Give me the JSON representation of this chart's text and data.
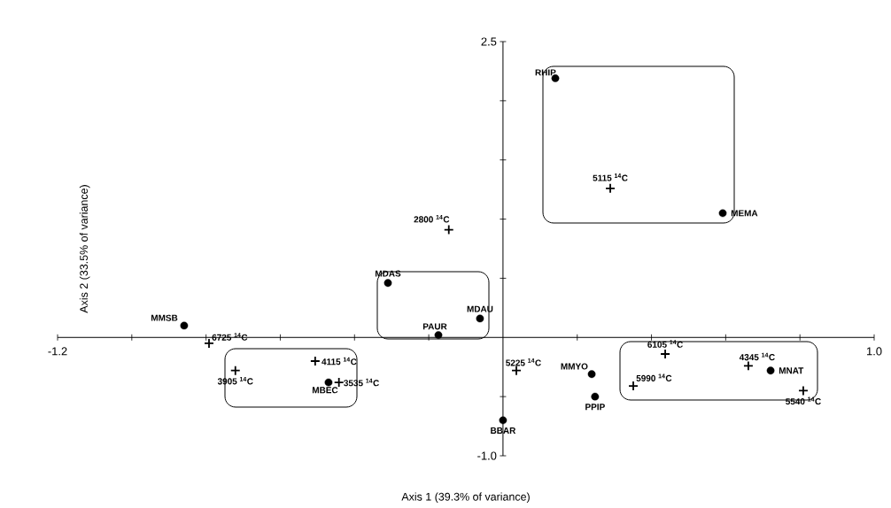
{
  "chart_data": {
    "type": "scatter",
    "xlabel": "Axis 1 (39.3% of variance)",
    "ylabel": "Axis 2 (33.5% of variance)",
    "xlim": [
      -1.2,
      1.0
    ],
    "ylim": [
      -1.0,
      2.5
    ],
    "xticks": [
      {
        "value": -1.2,
        "label": "-1.2"
      },
      {
        "value": -1.0,
        "label": null
      },
      {
        "value": -0.8,
        "label": null
      },
      {
        "value": -0.6,
        "label": null
      },
      {
        "value": -0.4,
        "label": null
      },
      {
        "value": -0.2,
        "label": null
      },
      {
        "value": 0.2,
        "label": null
      },
      {
        "value": 0.4,
        "label": null
      },
      {
        "value": 0.6,
        "label": null
      },
      {
        "value": 0.8,
        "label": null
      },
      {
        "value": 1.0,
        "label": "1.0"
      }
    ],
    "yticks": [
      {
        "value": -1.0,
        "label": "-1.0"
      },
      {
        "value": -0.5,
        "label": null
      },
      {
        "value": 0.5,
        "label": null
      },
      {
        "value": 1.0,
        "label": null
      },
      {
        "value": 1.5,
        "label": null
      },
      {
        "value": 2.0,
        "label": null
      },
      {
        "value": 2.5,
        "label": "2.5"
      }
    ],
    "series": [
      {
        "color": "#000000",
        "marker": "circle",
        "x": [
          0.141,
          0.592,
          -0.31,
          -0.062,
          -0.174,
          -0.859,
          -0.47,
          0.0,
          0.239,
          0.248,
          0.721
        ],
        "values": [
          2.19,
          1.05,
          0.46,
          0.16,
          0.02,
          0.1,
          -0.38,
          -0.7,
          -0.31,
          -0.5,
          -0.28
        ]
      },
      {
        "color": "#000000",
        "marker": "cross",
        "x": [
          0.289,
          -0.146,
          -0.792,
          -0.506,
          -0.721,
          -0.442,
          0.036,
          0.437,
          0.661,
          0.351,
          0.809
        ],
        "values": [
          1.26,
          0.91,
          -0.05,
          -0.2,
          -0.28,
          -0.38,
          -0.28,
          -0.14,
          -0.24,
          -0.41,
          -0.45
        ]
      }
    ],
    "annotations": [
      {
        "text": "RHIP",
        "x": 0.141,
        "y": 2.19
      },
      {
        "text": "MEMA",
        "x": 0.592,
        "y": 1.05
      },
      {
        "text": "MDAS",
        "x": -0.31,
        "y": 0.46
      },
      {
        "text": "MDAU",
        "x": -0.062,
        "y": 0.16
      },
      {
        "text": "PAUR",
        "x": -0.174,
        "y": 0.02
      },
      {
        "text": "MMSB",
        "x": -0.859,
        "y": 0.1
      },
      {
        "text": "MBEC",
        "x": -0.47,
        "y": -0.38
      },
      {
        "text": "BBAR",
        "x": 0.0,
        "y": -0.7
      },
      {
        "text": "MMYO",
        "x": 0.239,
        "y": -0.31
      },
      {
        "text": "PPIP",
        "x": 0.248,
        "y": -0.5
      },
      {
        "text": "MNAT",
        "x": 0.721,
        "y": -0.28
      },
      {
        "text": "5115 $^{14}$C",
        "x": 0.289,
        "y": 1.26
      },
      {
        "text": "2800 $^{14}$C",
        "x": -0.146,
        "y": 0.91
      },
      {
        "text": "6725 $^{14}$C",
        "x": -0.792,
        "y": -0.05
      },
      {
        "text": "4115 $^{14}$C",
        "x": -0.506,
        "y": -0.2
      },
      {
        "text": "3905 $^{14}$C",
        "x": -0.721,
        "y": -0.28
      },
      {
        "text": "3535 $^{14}$C",
        "x": -0.442,
        "y": -0.38
      },
      {
        "text": "5225 $^{14}$C",
        "x": 0.036,
        "y": -0.28
      },
      {
        "text": "6105 $^{14}$C",
        "x": 0.437,
        "y": -0.14
      },
      {
        "text": "4345 $^{14}$C",
        "x": 0.661,
        "y": -0.24
      },
      {
        "text": "5990 $^{14}$C",
        "x": 0.351,
        "y": -0.41
      },
      {
        "text": "5540 $^{14}$C",
        "x": 0.809,
        "y": -0.45
      }
    ]
  }
}
